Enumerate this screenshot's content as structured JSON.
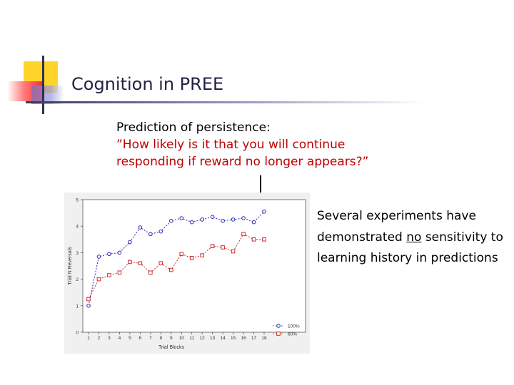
{
  "slide": {
    "title": "Cognition in PREE",
    "subtitle_line1": "Prediction of persistence:",
    "subtitle_line2": "”How likely is it that you will continue",
    "subtitle_line3": "responding if reward no longer appears?”",
    "right_text_pre": "Several experiments have demonstrated ",
    "right_text_underlined": "no",
    "right_text_post": " sensitivity to learning history in predictions"
  },
  "chart_data": {
    "type": "line",
    "title": "",
    "xlabel": "Trial Blocks",
    "ylabel": "Trial N Reversals",
    "categories": [
      "1",
      "2",
      "3",
      "4",
      "5",
      "6",
      "7",
      "8",
      "9",
      "10",
      "11",
      "12",
      "13",
      "14",
      "15",
      "16",
      "17",
      "18"
    ],
    "ylim": [
      0,
      5
    ],
    "yticks": [
      "0",
      "1",
      "2",
      "3",
      "4",
      "5"
    ],
    "series": [
      {
        "name": "100%",
        "marker": "circle",
        "color": "#2828b8",
        "values": [
          1.0,
          2.85,
          2.95,
          3.0,
          3.4,
          3.95,
          3.7,
          3.8,
          4.2,
          4.3,
          4.15,
          4.25,
          4.35,
          4.2,
          4.25,
          4.3,
          4.15,
          4.55
        ]
      },
      {
        "name": "60%",
        "marker": "square",
        "color": "#d02828",
        "values": [
          1.25,
          2.0,
          2.15,
          2.25,
          2.65,
          2.6,
          2.25,
          2.6,
          2.35,
          2.95,
          2.8,
          2.9,
          3.25,
          3.2,
          3.05,
          3.7,
          3.5,
          3.5
        ]
      }
    ],
    "legend_position": "bottom-right"
  }
}
